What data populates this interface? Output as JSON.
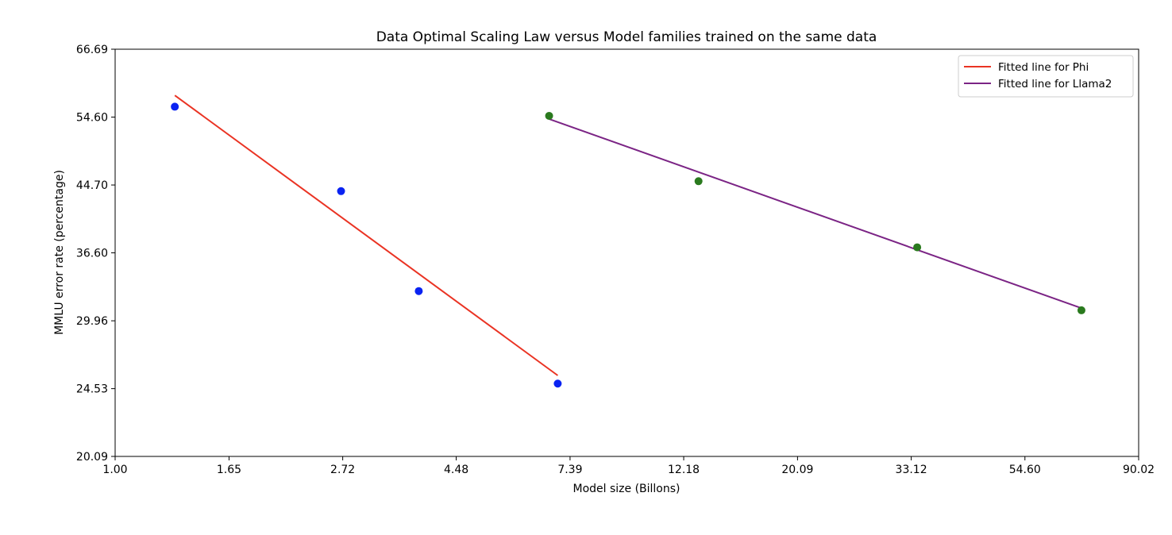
{
  "chart_data": {
    "type": "scatter",
    "title": "Data Optimal Scaling Law versus Model families trained on the same data",
    "xlabel": "Model size (Billons)",
    "ylabel": "MMLU error rate (percentage)",
    "x_scale": "log",
    "y_scale": "log",
    "xlim": [
      1.0,
      90.02
    ],
    "ylim": [
      20.09,
      66.69
    ],
    "x_ticks": [
      "1.00",
      "1.65",
      "2.72",
      "4.48",
      "7.39",
      "12.18",
      "20.09",
      "33.12",
      "54.60",
      "90.02"
    ],
    "y_ticks": [
      "20.09",
      "24.53",
      "29.96",
      "36.60",
      "44.70",
      "54.60",
      "66.69"
    ],
    "grid": false,
    "legend_position": "top-right",
    "series": [
      {
        "name": "",
        "kind": "points",
        "color": "#0a23f2",
        "points": [
          {
            "x": 1.3,
            "y": 56.3
          },
          {
            "x": 2.7,
            "y": 43.9
          },
          {
            "x": 3.8,
            "y": 32.7
          },
          {
            "x": 7.0,
            "y": 24.9
          }
        ]
      },
      {
        "name": "",
        "kind": "points",
        "color": "#2a7a1e",
        "points": [
          {
            "x": 6.74,
            "y": 54.8
          },
          {
            "x": 13.0,
            "y": 45.2
          },
          {
            "x": 34.0,
            "y": 37.2
          },
          {
            "x": 70.0,
            "y": 30.9
          }
        ]
      },
      {
        "name": "Fitted line for Phi",
        "kind": "line",
        "color": "#ea3323",
        "points": [
          {
            "x": 1.3,
            "y": 58.2
          },
          {
            "x": 7.0,
            "y": 25.5
          }
        ]
      },
      {
        "name": "Fitted line for Llama2",
        "kind": "line",
        "color": "#7b2485",
        "points": [
          {
            "x": 6.74,
            "y": 54.3
          },
          {
            "x": 70.0,
            "y": 31.1
          }
        ]
      }
    ]
  }
}
